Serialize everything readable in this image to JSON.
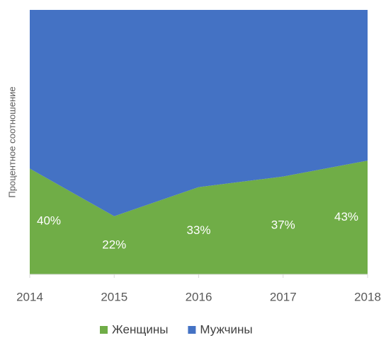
{
  "chart_data": {
    "type": "stacked_area_100",
    "y_axis_label": "Процентное соотношение",
    "categories": [
      "2014",
      "2015",
      "2016",
      "2017",
      "2018"
    ],
    "series": [
      {
        "name": "Женщины",
        "color": "#70ad47",
        "values": [
          40,
          22,
          33,
          37,
          43
        ],
        "value_labels": [
          "40%",
          "22%",
          "33%",
          "37%",
          "43%"
        ]
      },
      {
        "name": "Мужчины",
        "color": "#4472c4",
        "values": [
          60,
          78,
          67,
          63,
          57
        ]
      }
    ],
    "ylim": [
      0,
      100
    ],
    "legend": "bottom"
  }
}
